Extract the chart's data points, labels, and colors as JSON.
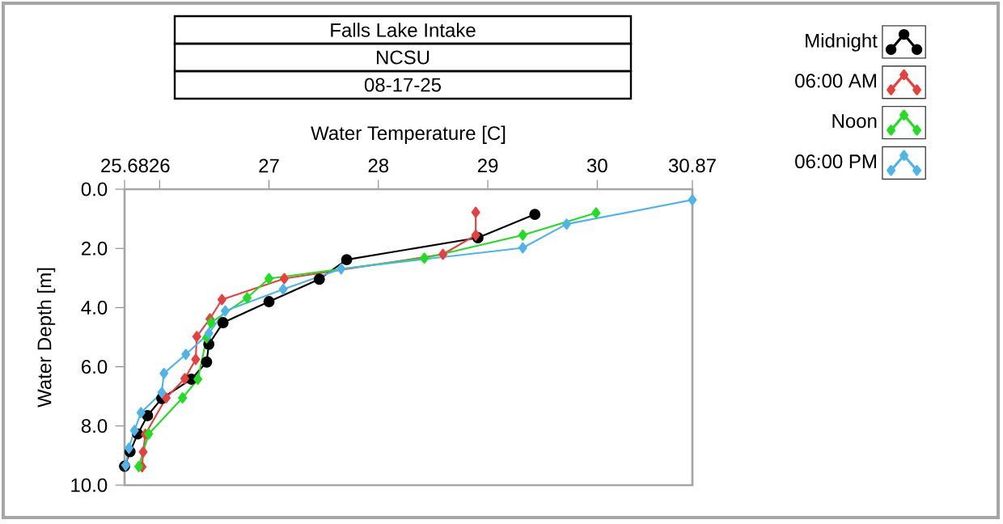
{
  "chart_data": {
    "type": "line",
    "title": "Falls Lake Intake",
    "subtitle": "NCSU",
    "annotations": [
      "08-17-25"
    ],
    "xlabel": "Water Temperature [C]",
    "ylabel": "Water Depth [m]",
    "xlim": [
      25.68,
      30.87
    ],
    "xticks": [
      25.68,
      26,
      27,
      28,
      29,
      30,
      30.87
    ],
    "ylim": [
      10,
      0
    ],
    "yticks": [
      {
        "value": 0,
        "label": "0.0"
      },
      {
        "value": 2,
        "label": "2.0"
      },
      {
        "value": 4,
        "label": "4.0"
      },
      {
        "value": 6,
        "label": "6.0"
      },
      {
        "value": 8,
        "label": "8.0"
      },
      {
        "value": 10,
        "label": "10.0"
      }
    ],
    "legend": "top right",
    "line_style": "solid",
    "series": [
      {
        "name": "Midnight",
        "color": "#000000",
        "marker": "circle",
        "x": [
          29.43,
          28.91,
          27.71,
          27.46,
          27.0,
          26.58,
          26.45,
          26.43,
          26.29,
          26.02,
          25.89,
          25.8,
          25.73,
          25.68
        ],
        "values": [
          0.85,
          1.64,
          2.38,
          3.04,
          3.8,
          4.51,
          5.24,
          5.84,
          6.42,
          7.07,
          7.65,
          8.27,
          8.87,
          9.36
        ]
      },
      {
        "name": "06:00 AM",
        "color": "#E8403F",
        "marker": "diamond",
        "x": [
          28.89,
          28.89,
          28.59,
          27.14,
          26.57,
          26.46,
          26.34,
          26.33,
          26.23,
          26.06,
          25.87,
          25.85,
          25.84
        ],
        "values": [
          0.78,
          1.55,
          2.2,
          3.02,
          3.73,
          4.38,
          4.98,
          5.75,
          6.4,
          7.05,
          8.28,
          8.88,
          9.38
        ]
      },
      {
        "name": "Noon",
        "color": "#22DD22",
        "marker": "diamond",
        "x": [
          29.99,
          29.32,
          28.42,
          27.0,
          26.8,
          26.47,
          26.43,
          26.35,
          26.21,
          25.9,
          25.81
        ],
        "values": [
          0.8,
          1.55,
          2.33,
          3.02,
          3.67,
          4.51,
          5.02,
          6.42,
          7.05,
          8.27,
          9.37
        ]
      },
      {
        "name": "06:00 PM",
        "color": "#4FB4E8",
        "marker": "diamond",
        "x": [
          30.87,
          29.72,
          29.32,
          27.66,
          27.13,
          26.6,
          26.45,
          26.24,
          26.04,
          26.02,
          25.83,
          25.77,
          25.72,
          25.69
        ],
        "values": [
          0.36,
          1.18,
          1.98,
          2.69,
          3.38,
          4.11,
          4.87,
          5.58,
          6.22,
          6.87,
          7.55,
          8.15,
          8.75,
          9.33
        ]
      }
    ]
  }
}
